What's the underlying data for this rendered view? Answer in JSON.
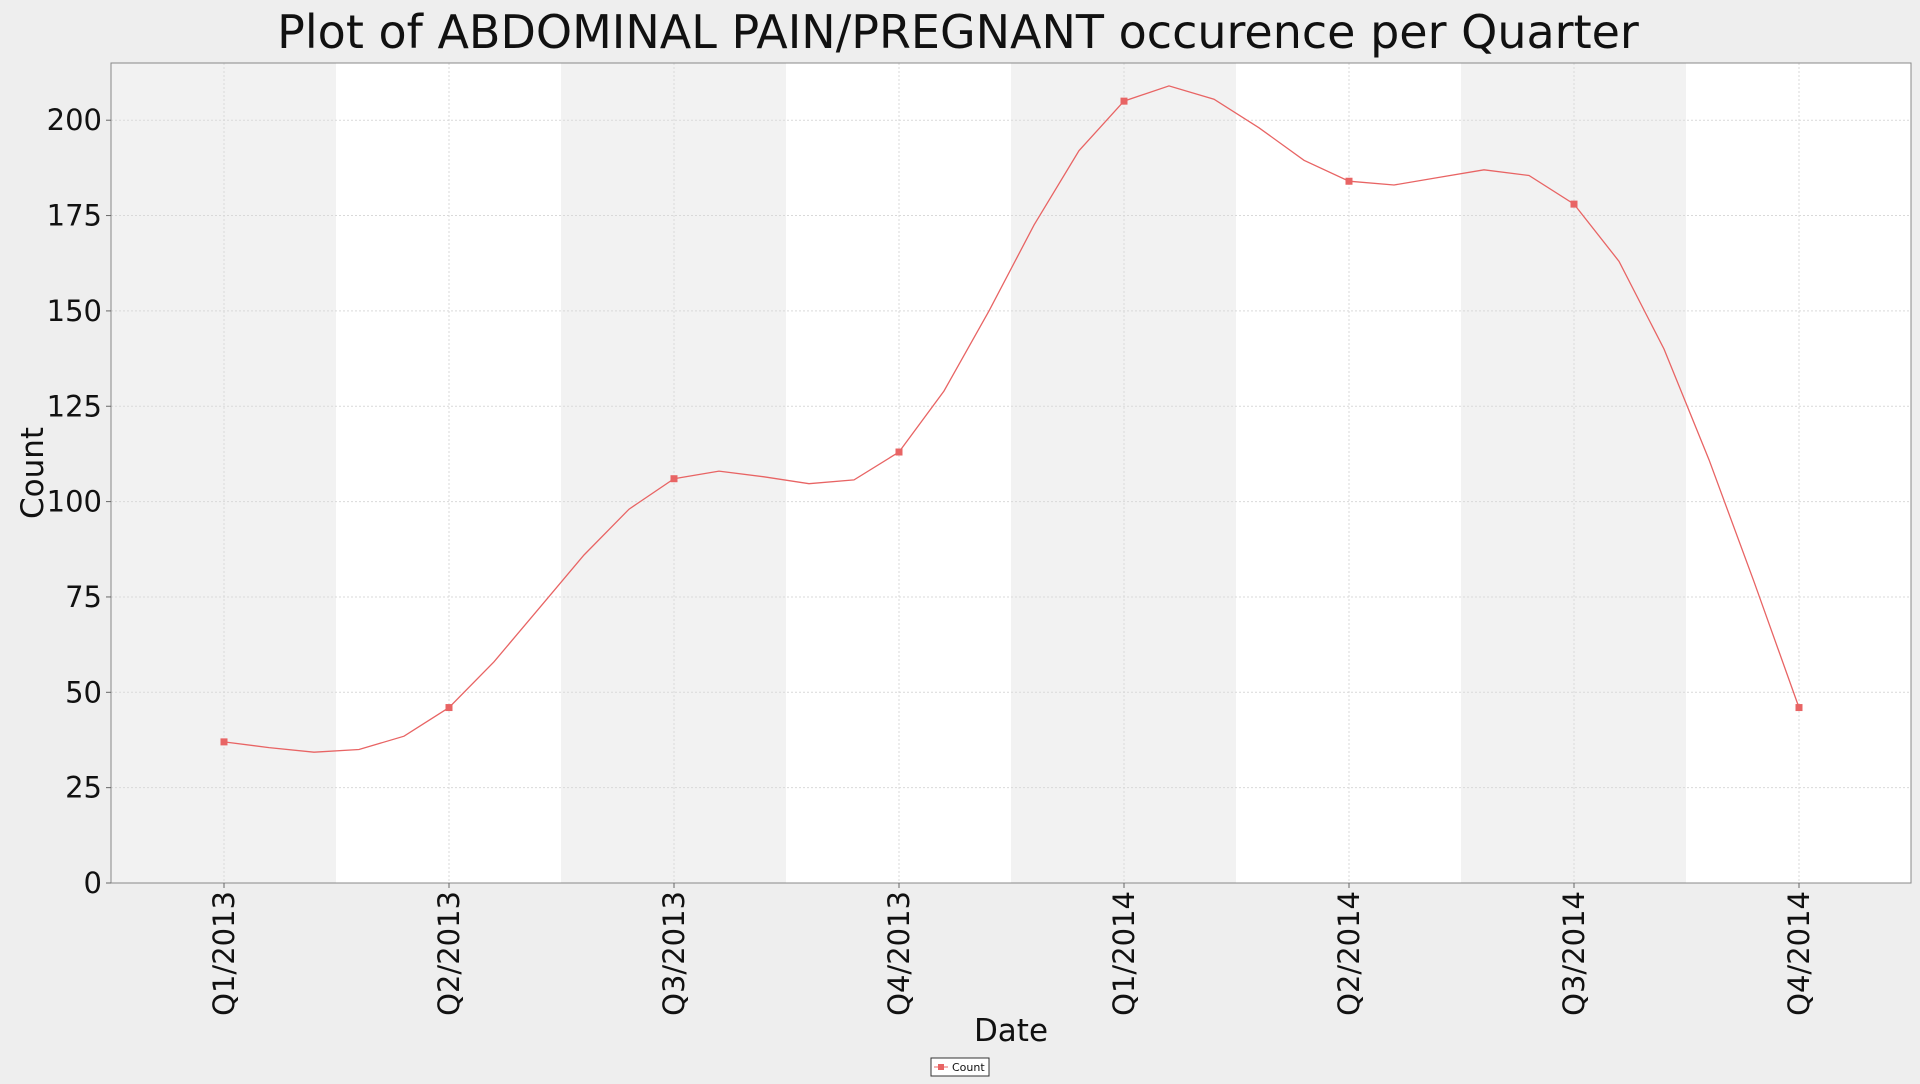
{
  "chart_data": {
    "type": "line",
    "title": "Plot of ABDOMINAL PAIN/PREGNANT occurence per Quarter",
    "xlabel": "Date",
    "ylabel": "Count",
    "ylim": [
      0,
      215
    ],
    "yticks": [
      0,
      25,
      50,
      75,
      100,
      125,
      150,
      175,
      200
    ],
    "yticklabels": [
      "0",
      "25",
      "50",
      "75",
      "100",
      "125",
      "150",
      "175",
      "200"
    ],
    "categories": [
      "Q1/2013",
      "Q2/2013",
      "Q3/2013",
      "Q4/2013",
      "Q1/2014",
      "Q2/2014",
      "Q3/2014",
      "Q4/2014"
    ],
    "grid": true,
    "legend_position": "bottom-center",
    "series": [
      {
        "name": "Count",
        "color": "#e86464",
        "marker_values": [
          37,
          46,
          106,
          113,
          205,
          184,
          178,
          46
        ],
        "curve": [
          [
            0,
            37
          ],
          [
            0.2,
            35.5
          ],
          [
            0.4,
            34.3
          ],
          [
            0.6,
            35
          ],
          [
            0.8,
            38.5
          ],
          [
            1,
            46
          ],
          [
            1.2,
            58
          ],
          [
            1.4,
            72
          ],
          [
            1.6,
            86
          ],
          [
            1.8,
            98
          ],
          [
            2,
            106
          ],
          [
            2.2,
            108
          ],
          [
            2.4,
            106.5
          ],
          [
            2.6,
            104.7
          ],
          [
            2.8,
            105.7
          ],
          [
            3,
            113
          ],
          [
            3.2,
            129
          ],
          [
            3.4,
            150
          ],
          [
            3.6,
            172.5
          ],
          [
            3.8,
            192
          ],
          [
            4,
            205
          ],
          [
            4.2,
            209
          ],
          [
            4.4,
            205.5
          ],
          [
            4.6,
            198
          ],
          [
            4.8,
            189.5
          ],
          [
            5,
            184
          ],
          [
            5.2,
            183
          ],
          [
            5.4,
            185
          ],
          [
            5.6,
            187
          ],
          [
            5.8,
            185.5
          ],
          [
            6,
            178
          ],
          [
            6.2,
            163
          ],
          [
            6.4,
            140
          ],
          [
            6.6,
            111
          ],
          [
            6.8,
            79
          ],
          [
            7,
            46
          ]
        ]
      }
    ]
  }
}
